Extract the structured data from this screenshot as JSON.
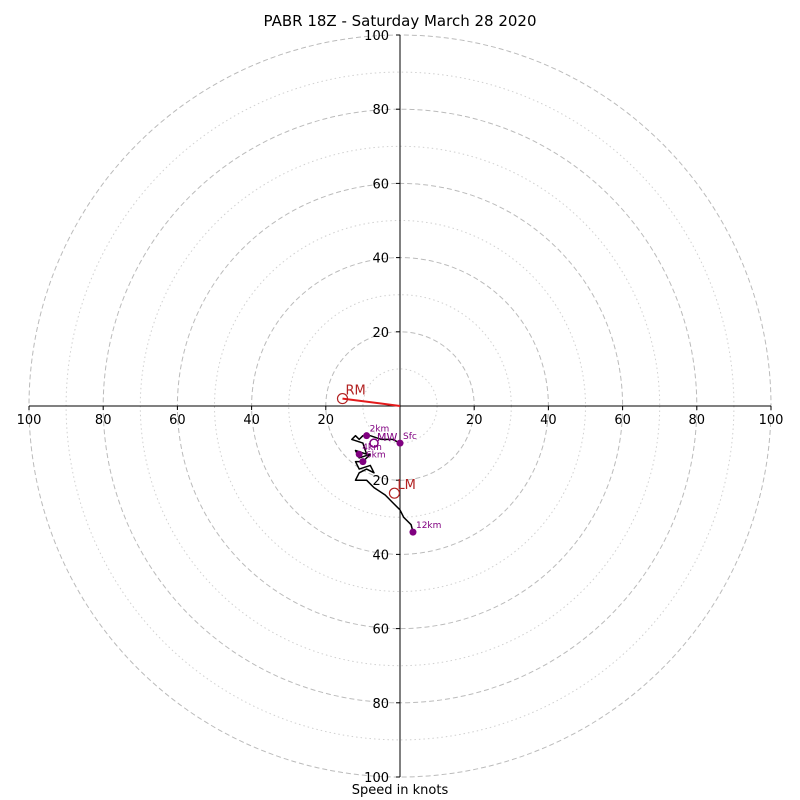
{
  "chart_data": {
    "type": "hodograph",
    "title": "PABR 18Z - Saturday March 28 2020",
    "xlabel": "Speed in knots",
    "range": [
      -100,
      100
    ],
    "ring_major": [
      20,
      40,
      60,
      80,
      100
    ],
    "ring_minor": [
      10,
      30,
      50,
      70,
      90
    ],
    "x_ticks": [
      "100",
      "80",
      "60",
      "40",
      "20",
      "20",
      "40",
      "60",
      "80",
      "100"
    ],
    "y_ticks_top": [
      "100",
      "80",
      "60",
      "40",
      "20"
    ],
    "y_ticks_bottom": [
      "20",
      "40",
      "60",
      "80",
      "100"
    ],
    "hodo_trace": [
      [
        0,
        -10
      ],
      [
        -2,
        -9
      ],
      [
        -5,
        -9
      ],
      [
        -8,
        -8
      ],
      [
        -10,
        -8
      ],
      [
        -11,
        -9
      ],
      [
        -12,
        -8
      ],
      [
        -13,
        -9
      ],
      [
        -10,
        -10
      ],
      [
        -9,
        -13
      ],
      [
        -12,
        -12
      ],
      [
        -11,
        -14
      ],
      [
        -8,
        -13
      ],
      [
        -10,
        -15
      ],
      [
        -12,
        -15
      ],
      [
        -11,
        -17
      ],
      [
        -8,
        -16
      ],
      [
        -7,
        -18
      ],
      [
        -9,
        -17
      ],
      [
        -11,
        -18
      ],
      [
        -12,
        -20
      ],
      [
        -9,
        -20
      ],
      [
        -7,
        -22
      ],
      [
        -4,
        -24
      ],
      [
        -2,
        -26
      ],
      [
        0,
        -28
      ],
      [
        1,
        -30
      ],
      [
        2,
        -31
      ],
      [
        3,
        -32
      ],
      [
        3.5,
        -34
      ]
    ],
    "levels": [
      {
        "label": "Sfc",
        "x": 0,
        "y": -10
      },
      {
        "label": "2km",
        "x": -9,
        "y": -8
      },
      {
        "label": "4km",
        "x": -11,
        "y": -13
      },
      {
        "label": "6km",
        "x": -10,
        "y": -15
      },
      {
        "label": "12km",
        "x": 3.5,
        "y": -34
      }
    ],
    "mean_wind_label": "MW",
    "mean_wind": {
      "x": -7,
      "y": -10
    },
    "storm_motions": [
      {
        "label": "RM",
        "x": -15.5,
        "y": 2
      },
      {
        "label": "LM",
        "x": -1.5,
        "y": -23.5
      }
    ],
    "shear_vector": {
      "from": [
        0,
        0
      ],
      "to": [
        -15.5,
        2
      ],
      "color": "#e31a1c"
    },
    "colors": {
      "trace": "#000000",
      "levels": "#800080",
      "motion": "#b22222",
      "ring": "#bbbbbb",
      "minor_ring": "#d0d0d0"
    }
  }
}
